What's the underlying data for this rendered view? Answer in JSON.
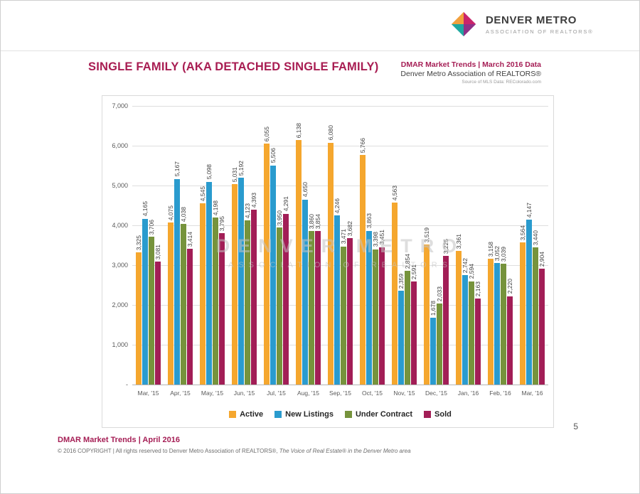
{
  "page": {
    "number": "5"
  },
  "logo": {
    "name": "DENVER METRO",
    "tagline": "ASSOCIATION OF REALTORS®"
  },
  "header": {
    "title": "SINGLE FAMILY (AKA DETACHED SINGLE FAMILY)",
    "source_line1": "DMAR Market Trends | March 2016 Data",
    "source_line2": "Denver Metro Association of REALTORS®",
    "source_line3": "Source of MLS Data: REColorado.com"
  },
  "watermark": {
    "line1": "DENVER METRO",
    "line2": "ASSOCIATION OF REALTORS"
  },
  "footer": {
    "title": "DMAR Market Trends | April 2016",
    "copyright": "© 2016 COPYRIGHT | All rights reserved to Denver Metro Association of REALTORS®, ",
    "copyright_italic": "The Voice of Real Estate® in the Denver Metro area"
  },
  "colors": {
    "accent_maroon": "#A51E55",
    "active": "#F5A72E",
    "new_listings": "#2A9BCE",
    "under_contract": "#76933C",
    "sold": "#A21E56",
    "gridline": "#DEDEDE"
  },
  "chart_data": {
    "type": "bar",
    "title": "SINGLE FAMILY (AKA DETACHED SINGLE FAMILY)",
    "categories": [
      "Mar, '15",
      "Apr, '15",
      "May, '15",
      "Jun, '15",
      "Jul, '15",
      "Aug, '15",
      "Sep, '15",
      "Oct, '15",
      "Nov, '15",
      "Dec, '15",
      "Jan, '16",
      "Feb, '16",
      "Mar, '16"
    ],
    "series": [
      {
        "name": "Active",
        "color": "#F5A72E",
        "values": [
          3325,
          4075,
          4545,
          5031,
          6055,
          6138,
          6080,
          5766,
          4563,
          3519,
          3361,
          3158,
          3564
        ]
      },
      {
        "name": "New Listings",
        "color": "#2A9BCE",
        "values": [
          4165,
          5167,
          5098,
          5192,
          5506,
          4650,
          4246,
          3863,
          2359,
          1678,
          2742,
          3052,
          4147
        ]
      },
      {
        "name": "Under Contract",
        "color": "#76933C",
        "values": [
          3706,
          4038,
          4198,
          4123,
          3950,
          3860,
          3471,
          3398,
          2854,
          2033,
          2594,
          3039,
          3440
        ]
      },
      {
        "name": "Sold",
        "color": "#A21E56",
        "values": [
          3081,
          3414,
          3795,
          4393,
          4291,
          3854,
          3682,
          3451,
          2591,
          3225,
          2163,
          2220,
          2904
        ]
      }
    ],
    "ylim": [
      0,
      7000
    ],
    "ytick_step": 1000,
    "ytick_labels": [
      "-",
      "1,000",
      "2,000",
      "3,000",
      "4,000",
      "5,000",
      "6,000",
      "7,000"
    ],
    "grid": true,
    "legend_position": "bottom",
    "bar_value_labels": "rotated-vertical"
  }
}
